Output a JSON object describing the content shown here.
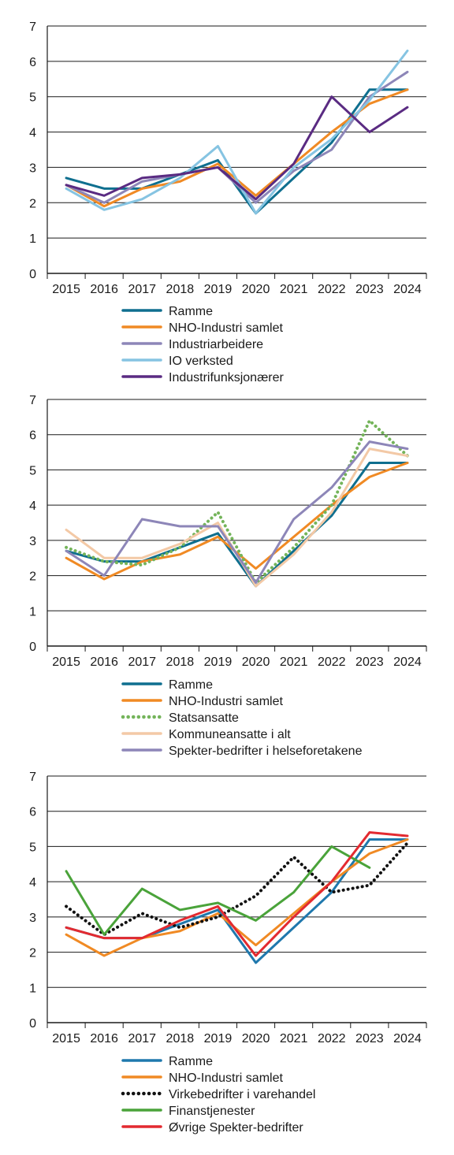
{
  "chart_data": [
    {
      "type": "line",
      "x": [
        "2015",
        "2016",
        "2017",
        "2018",
        "2019",
        "2020",
        "2021",
        "2022",
        "2023",
        "2024"
      ],
      "ylim": [
        0,
        7
      ],
      "yticks": [
        "0",
        "1",
        "2",
        "3",
        "4",
        "5",
        "6",
        "7"
      ],
      "grid": true,
      "legend_position": "bottom",
      "series": [
        {
          "name": "Ramme",
          "color": "#0f6f8f",
          "style": "solid",
          "values": [
            2.7,
            2.4,
            2.4,
            2.8,
            3.2,
            1.7,
            2.7,
            3.7,
            5.2,
            5.2
          ]
        },
        {
          "name": "NHO-Industri samlet",
          "color": "#f08a24",
          "style": "solid",
          "values": [
            2.5,
            1.9,
            2.4,
            2.6,
            3.1,
            2.2,
            3.1,
            4.0,
            4.8,
            5.2
          ]
        },
        {
          "name": "Industriarbeidere",
          "color": "#8d86b8",
          "style": "solid",
          "values": [
            2.5,
            2.0,
            2.6,
            2.8,
            3.0,
            2.0,
            2.9,
            3.5,
            5.0,
            5.7
          ]
        },
        {
          "name": "IO verksted",
          "color": "#86c4e2",
          "style": "solid",
          "values": [
            2.4,
            1.8,
            2.1,
            2.7,
            3.6,
            1.7,
            3.0,
            3.8,
            4.9,
            6.3
          ]
        },
        {
          "name": "Industrifunksjonærer",
          "color": "#5a2b82",
          "style": "solid",
          "values": [
            2.5,
            2.2,
            2.7,
            2.8,
            3.0,
            2.1,
            3.1,
            5.0,
            4.0,
            4.7
          ]
        }
      ]
    },
    {
      "type": "line",
      "x": [
        "2015",
        "2016",
        "2017",
        "2018",
        "2019",
        "2020",
        "2021",
        "2022",
        "2023",
        "2024"
      ],
      "ylim": [
        0,
        7
      ],
      "yticks": [
        "0",
        "1",
        "2",
        "3",
        "4",
        "5",
        "6",
        "7"
      ],
      "grid": true,
      "legend_position": "bottom",
      "series": [
        {
          "name": "Ramme",
          "color": "#0f6f8f",
          "style": "solid",
          "values": [
            2.7,
            2.4,
            2.4,
            2.8,
            3.2,
            1.7,
            2.7,
            3.7,
            5.2,
            5.2
          ]
        },
        {
          "name": "NHO-Industri samlet",
          "color": "#f08a24",
          "style": "solid",
          "values": [
            2.5,
            1.9,
            2.4,
            2.6,
            3.1,
            2.2,
            3.1,
            4.0,
            4.8,
            5.2
          ]
        },
        {
          "name": "Statsansatte",
          "color": "#74b45a",
          "style": "dotted",
          "values": [
            2.8,
            2.4,
            2.3,
            2.8,
            3.8,
            1.8,
            2.8,
            4.0,
            6.4,
            5.4
          ]
        },
        {
          "name": "Kommuneansatte i alt",
          "color": "#f3c9a6",
          "style": "solid",
          "values": [
            3.3,
            2.5,
            2.5,
            2.9,
            3.5,
            1.7,
            2.6,
            3.8,
            5.6,
            5.4
          ]
        },
        {
          "name": "Spekter-bedrifter i helseforetakene",
          "color": "#8d86b8",
          "style": "solid",
          "values": [
            2.7,
            2.0,
            3.6,
            3.4,
            3.4,
            1.8,
            3.6,
            4.5,
            5.8,
            5.6
          ]
        }
      ]
    },
    {
      "type": "line",
      "x": [
        "2015",
        "2016",
        "2017",
        "2018",
        "2019",
        "2020",
        "2021",
        "2022",
        "2023",
        "2024"
      ],
      "ylim": [
        0,
        7
      ],
      "yticks": [
        "0",
        "1",
        "2",
        "3",
        "4",
        "5",
        "6",
        "7"
      ],
      "grid": true,
      "legend_position": "bottom",
      "series": [
        {
          "name": "Ramme",
          "color": "#1f78ad",
          "style": "solid",
          "values": [
            2.7,
            2.4,
            2.4,
            2.8,
            3.2,
            1.7,
            2.7,
            3.7,
            5.2,
            5.2
          ]
        },
        {
          "name": "NHO-Industri samlet",
          "color": "#f08a24",
          "style": "solid",
          "values": [
            2.5,
            1.9,
            2.4,
            2.6,
            3.1,
            2.2,
            3.1,
            4.0,
            4.8,
            5.2
          ]
        },
        {
          "name": "Virkebedrifter i varehandel",
          "color": "#111111",
          "style": "dotted",
          "values": [
            3.3,
            2.5,
            3.1,
            2.7,
            3.0,
            3.6,
            4.7,
            3.7,
            3.9,
            5.1
          ]
        },
        {
          "name": "Finanstjenester",
          "color": "#4aa33a",
          "style": "solid",
          "values": [
            4.3,
            2.5,
            3.8,
            3.2,
            3.4,
            2.9,
            3.7,
            5.0,
            4.4,
            null
          ]
        },
        {
          "name": "Øvrige Spekter-bedrifter",
          "color": "#e32a30",
          "style": "solid",
          "values": [
            2.7,
            2.4,
            2.4,
            2.9,
            3.3,
            1.9,
            3.0,
            4.0,
            5.4,
            5.3
          ]
        }
      ]
    }
  ]
}
